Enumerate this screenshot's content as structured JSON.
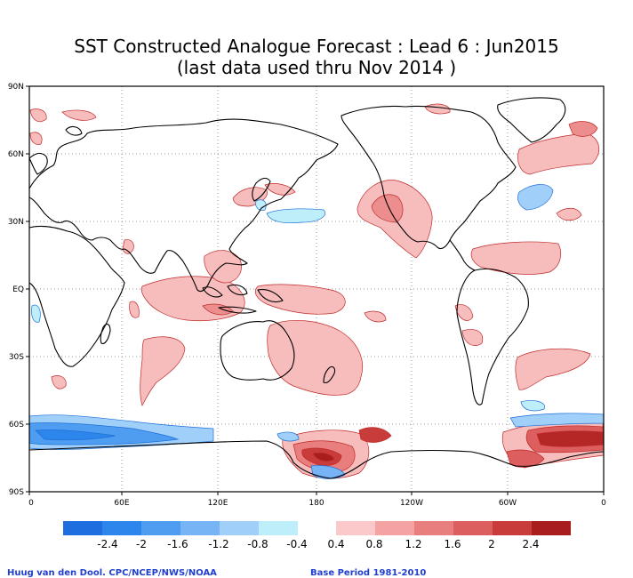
{
  "title": {
    "line1": "SST Constructed Analogue Forecast : Lead 6 : Jun2015",
    "line2": "(last data used thru Nov 2014 )"
  },
  "map": {
    "projection": "equirectangular",
    "lon_ticks": [
      "0",
      "60E",
      "120E",
      "180",
      "120W",
      "60W",
      "0"
    ],
    "lat_ticks": [
      "90N",
      "60N",
      "30N",
      "EQ",
      "30S",
      "60S",
      "90S"
    ],
    "grid": "dotted",
    "regions_positive": [
      "North Pacific",
      "NE Pacific off North America",
      "Maritime Continent",
      "South Pacific",
      "Tropical North Atlantic",
      "North Atlantic",
      "Southern Ocean Ross Sea",
      "Southern Ocean Weddell Sea"
    ],
    "regions_negative": [
      "Southern Ocean band 0-150E",
      "North Pacific 30N band",
      "NW Atlantic subpolar",
      "Southern Ocean south of Australia"
    ]
  },
  "legend": {
    "negative": {
      "labels": [
        "-2.4",
        "-2",
        "-1.6",
        "-1.2",
        "-0.8",
        "-0.4"
      ],
      "colors": [
        "#1e6ee0",
        "#2c86ec",
        "#4e9df1",
        "#76b4f5",
        "#a0d0f9",
        "#bdeef9"
      ]
    },
    "positive": {
      "labels": [
        "0.4",
        "0.8",
        "1.2",
        "1.6",
        "2",
        "2.4"
      ],
      "colors": [
        "#fbc9c9",
        "#f4a2a2",
        "#e87e7e",
        "#dc5e5e",
        "#c83c3c",
        "#a81e1e"
      ]
    }
  },
  "footer": {
    "credit": "Huug van den Dool. CPC/NCEP/NWS/NOAA",
    "base_period": "Base Period 1981-2010"
  }
}
